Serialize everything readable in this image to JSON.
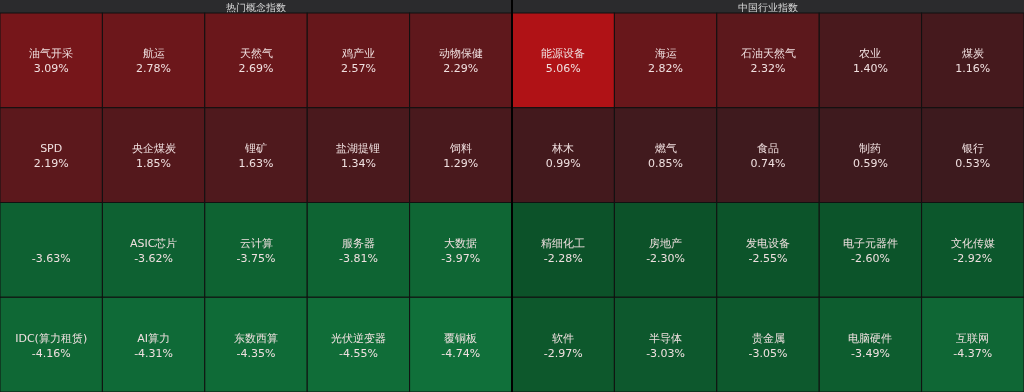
{
  "chart_data": [
    {
      "type": "other",
      "title": "热门概念指数",
      "categories": [
        "油气开采",
        "航运",
        "天然气",
        "鸡产业",
        "动物保健",
        "SPD",
        "央企煤炭",
        "锂矿",
        "盐湖提锂",
        "饲料",
        null,
        "ASIC芯片",
        "云计算",
        "服务器",
        "大数据",
        "IDC(算力租赁)",
        "AI算力",
        "东数西算",
        "光伏逆变器",
        "覆铜板"
      ],
      "values": [
        3.09,
        2.78,
        2.69,
        2.57,
        2.29,
        2.19,
        1.85,
        1.63,
        1.34,
        1.29,
        -3.63,
        -3.62,
        -3.75,
        -3.81,
        -3.97,
        -4.16,
        -4.31,
        -4.35,
        -4.55,
        -4.74
      ],
      "value_labels": [
        "3.09%",
        "2.78%",
        "2.69%",
        "2.57%",
        "2.29%",
        "2.19%",
        "1.85%",
        "1.63%",
        "1.34%",
        "1.29%",
        "-3.63%",
        "-3.62%",
        "-3.75%",
        "-3.81%",
        "-3.97%",
        "-4.16%",
        "-4.31%",
        "-4.35%",
        "-4.55%",
        "-4.74%"
      ]
    },
    {
      "type": "other",
      "title": "中国行业指数",
      "categories": [
        "能源设备",
        "海运",
        "石油天然气",
        "农业",
        "煤炭",
        "林木",
        "燃气",
        "食品",
        "制药",
        "银行",
        "精细化工",
        "房地产",
        "发电设备",
        "电子元器件",
        "文化传媒",
        "软件",
        "半导体",
        "贵金属",
        "电脑硬件",
        "互联网"
      ],
      "values": [
        5.06,
        2.82,
        2.32,
        1.4,
        1.16,
        0.99,
        0.85,
        0.74,
        0.59,
        0.53,
        -2.28,
        -2.3,
        -2.55,
        -2.6,
        -2.92,
        -2.97,
        -3.03,
        -3.05,
        -3.49,
        -4.37
      ],
      "value_labels": [
        "5.06%",
        "2.82%",
        "2.32%",
        "1.40%",
        "1.16%",
        "0.99%",
        "0.85%",
        "0.74%",
        "0.59%",
        "0.53%",
        "-2.28%",
        "-2.30%",
        "-2.55%",
        "-2.60%",
        "-2.92%",
        "-2.97%",
        "-3.03%",
        "-3.05%",
        "-3.49%",
        "-4.37%"
      ]
    }
  ]
}
